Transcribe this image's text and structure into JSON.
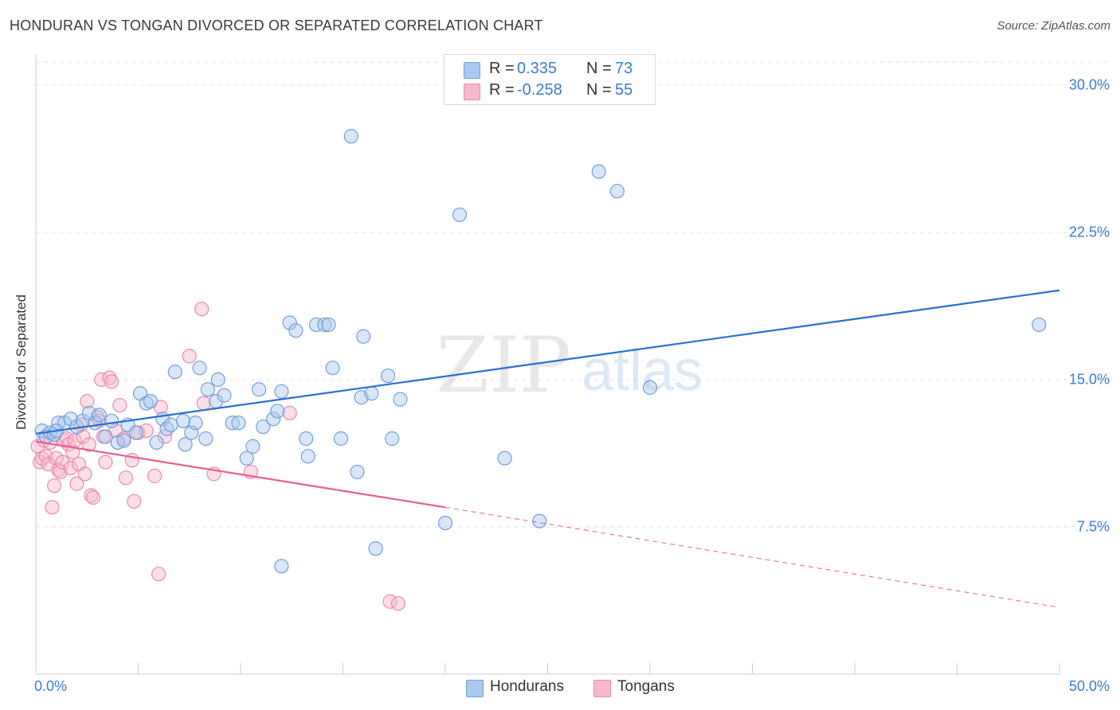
{
  "header": {
    "title": "HONDURAN VS TONGAN DIVORCED OR SEPARATED CORRELATION CHART",
    "source": "Source: ZipAtlas.com"
  },
  "watermark": {
    "zip": "ZIP",
    "atlas": "atlas"
  },
  "legend_top": [
    {
      "r_label": "R =",
      "r_value": "0.335",
      "n_label": "N =",
      "n_value": "73"
    },
    {
      "r_label": "R =",
      "r_value": "-0.258",
      "n_label": "N =",
      "n_value": "55"
    }
  ],
  "colors": {
    "honduran_fill": "#aac8f0",
    "honduran_stroke": "#6f9fdc",
    "honduran_line": "#2a6fd1",
    "tongan_fill": "#f7b8cc",
    "tongan_stroke": "#eb8aab",
    "tongan_line": "#e4608e",
    "tick_label": "#3a7bd5",
    "grid": "#e3e3e3"
  },
  "chart_data": {
    "type": "scatter",
    "title": "HONDURAN VS TONGAN DIVORCED OR SEPARATED CORRELATION CHART",
    "xlabel": "",
    "ylabel": "Divorced or Separated",
    "xlim": [
      0,
      50
    ],
    "ylim": [
      0,
      31.5
    ],
    "x_tick_labels": [
      "0.0%",
      "50.0%"
    ],
    "y_ticks": [
      7.5,
      15.0,
      22.5,
      30.0
    ],
    "y_tick_labels": [
      "7.5%",
      "15.0%",
      "22.5%",
      "30.0%"
    ],
    "legend_position": "bottom-center",
    "series": [
      {
        "name": "Hondurans",
        "r": 0.335,
        "n": 73,
        "trend": {
          "x": [
            0.0,
            50.0
          ],
          "y": [
            12.25,
            19.55
          ]
        },
        "points": [
          [
            0.3,
            12.4
          ],
          [
            0.5,
            12.1
          ],
          [
            0.7,
            12.3
          ],
          [
            0.9,
            12.2
          ],
          [
            1.1,
            12.8
          ],
          [
            1.4,
            12.8
          ],
          [
            1.7,
            13.0
          ],
          [
            2.0,
            12.6
          ],
          [
            2.3,
            12.9
          ],
          [
            2.6,
            13.3
          ],
          [
            2.9,
            12.8
          ],
          [
            3.1,
            13.2
          ],
          [
            3.4,
            12.1
          ],
          [
            3.7,
            12.9
          ],
          [
            4.0,
            11.8
          ],
          [
            4.3,
            11.9
          ],
          [
            4.5,
            12.7
          ],
          [
            4.9,
            12.3
          ],
          [
            5.1,
            14.3
          ],
          [
            5.4,
            13.8
          ],
          [
            5.6,
            13.9
          ],
          [
            5.9,
            11.8
          ],
          [
            6.2,
            13.0
          ],
          [
            6.4,
            12.5
          ],
          [
            6.6,
            12.7
          ],
          [
            6.8,
            15.4
          ],
          [
            7.2,
            12.9
          ],
          [
            7.3,
            11.7
          ],
          [
            7.6,
            12.3
          ],
          [
            7.8,
            12.8
          ],
          [
            8.0,
            15.6
          ],
          [
            8.3,
            12.0
          ],
          [
            8.4,
            14.5
          ],
          [
            8.8,
            13.9
          ],
          [
            8.9,
            15.0
          ],
          [
            9.2,
            14.2
          ],
          [
            9.6,
            12.8
          ],
          [
            9.9,
            12.8
          ],
          [
            10.3,
            11.0
          ],
          [
            10.6,
            11.6
          ],
          [
            10.9,
            14.5
          ],
          [
            11.1,
            12.6
          ],
          [
            11.6,
            13.0
          ],
          [
            11.8,
            13.4
          ],
          [
            12.0,
            14.4
          ],
          [
            12.4,
            17.9
          ],
          [
            12.7,
            17.5
          ],
          [
            13.2,
            12.0
          ],
          [
            13.3,
            11.1
          ],
          [
            13.7,
            17.8
          ],
          [
            14.1,
            17.8
          ],
          [
            14.3,
            17.8
          ],
          [
            14.5,
            15.6
          ],
          [
            14.9,
            12.0
          ],
          [
            15.4,
            27.4
          ],
          [
            15.7,
            10.3
          ],
          [
            15.9,
            14.1
          ],
          [
            16.0,
            17.2
          ],
          [
            16.4,
            14.3
          ],
          [
            16.6,
            6.4
          ],
          [
            17.2,
            15.2
          ],
          [
            17.4,
            12.0
          ],
          [
            17.8,
            14.0
          ],
          [
            20.0,
            7.7
          ],
          [
            20.7,
            23.4
          ],
          [
            22.9,
            11.0
          ],
          [
            24.6,
            7.8
          ],
          [
            27.5,
            25.6
          ],
          [
            28.4,
            24.6
          ],
          [
            30.0,
            14.6
          ],
          [
            12.0,
            5.5
          ],
          [
            49.0,
            17.8
          ],
          [
            1.0,
            12.4
          ]
        ]
      },
      {
        "name": "Tongans",
        "r": -0.258,
        "n": 55,
        "trend": {
          "x": [
            0.0,
            20.0,
            50.0
          ],
          "y": [
            11.85,
            8.5,
            3.4
          ]
        },
        "points": [
          [
            0.1,
            11.6
          ],
          [
            0.2,
            10.8
          ],
          [
            0.3,
            11.0
          ],
          [
            0.4,
            11.9
          ],
          [
            0.5,
            11.1
          ],
          [
            0.6,
            10.7
          ],
          [
            0.7,
            11.8
          ],
          [
            0.8,
            8.5
          ],
          [
            0.9,
            9.6
          ],
          [
            1.0,
            11.0
          ],
          [
            1.1,
            10.4
          ],
          [
            1.2,
            10.3
          ],
          [
            1.3,
            10.8
          ],
          [
            1.4,
            11.9
          ],
          [
            1.5,
            12.0
          ],
          [
            1.6,
            11.7
          ],
          [
            1.7,
            10.5
          ],
          [
            1.8,
            11.3
          ],
          [
            1.9,
            11.9
          ],
          [
            2.0,
            9.7
          ],
          [
            2.1,
            10.7
          ],
          [
            2.2,
            12.7
          ],
          [
            2.3,
            12.1
          ],
          [
            2.4,
            10.2
          ],
          [
            2.5,
            13.9
          ],
          [
            2.6,
            11.7
          ],
          [
            2.7,
            9.1
          ],
          [
            2.8,
            9.0
          ],
          [
            3.0,
            13.1
          ],
          [
            3.1,
            12.9
          ],
          [
            3.2,
            15.0
          ],
          [
            3.3,
            12.1
          ],
          [
            3.4,
            10.8
          ],
          [
            3.6,
            15.1
          ],
          [
            3.7,
            14.9
          ],
          [
            3.9,
            12.4
          ],
          [
            4.1,
            13.7
          ],
          [
            4.3,
            12.0
          ],
          [
            4.4,
            10.0
          ],
          [
            4.7,
            10.9
          ],
          [
            4.8,
            8.8
          ],
          [
            5.0,
            12.3
          ],
          [
            5.4,
            12.4
          ],
          [
            5.8,
            10.1
          ],
          [
            6.0,
            5.1
          ],
          [
            6.1,
            13.6
          ],
          [
            6.3,
            12.1
          ],
          [
            7.5,
            16.2
          ],
          [
            8.1,
            18.6
          ],
          [
            8.2,
            13.8
          ],
          [
            8.7,
            10.2
          ],
          [
            10.5,
            10.3
          ],
          [
            12.4,
            13.3
          ],
          [
            17.3,
            3.7
          ],
          [
            17.7,
            3.6
          ]
        ]
      }
    ]
  }
}
